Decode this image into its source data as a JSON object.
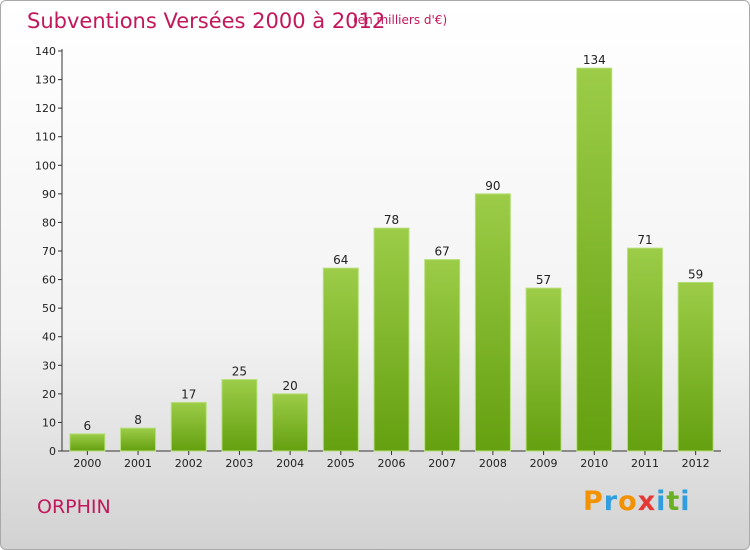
{
  "header": {
    "title": "Subventions Versées 2000 à 2012",
    "subtitle": "(en milliers d'€)"
  },
  "footer": {
    "commune": "ORPHIN",
    "logo_text": "Proxiti"
  },
  "colors": {
    "accent": "#c2185b",
    "bar_top": "#9ccc48",
    "bar_bottom": "#64a010",
    "logo_letters": [
      "#f39200",
      "#2e9ee0",
      "#f39200",
      "#e53935",
      "#2e9ee0",
      "#6ab023",
      "#2e9ee0"
    ]
  },
  "chart_data": {
    "type": "bar",
    "title": "Subventions Versées 2000 à 2012",
    "subtitle": "(en milliers d'€)",
    "xlabel": "",
    "ylabel": "",
    "categories": [
      "2000",
      "2001",
      "2002",
      "2003",
      "2004",
      "2005",
      "2006",
      "2007",
      "2008",
      "2009",
      "2010",
      "2011",
      "2012"
    ],
    "values": [
      6,
      8,
      17,
      25,
      20,
      64,
      78,
      67,
      90,
      57,
      134,
      71,
      59
    ],
    "ylim": [
      0,
      140
    ],
    "yticks": [
      0,
      10,
      20,
      30,
      40,
      50,
      60,
      70,
      80,
      90,
      100,
      110,
      120,
      130,
      140
    ],
    "grid": false,
    "data_labels": true
  }
}
